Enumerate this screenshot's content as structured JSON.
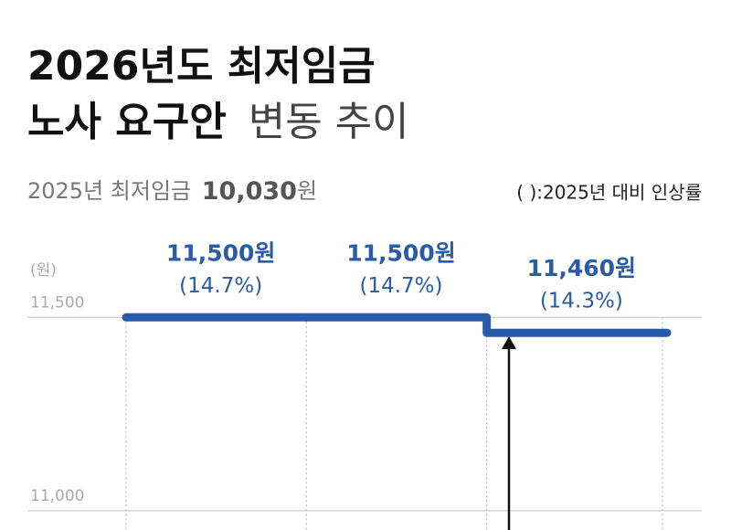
{
  "chart_data": {
    "type": "step",
    "title_bold": "2026년도 최저임금",
    "title_bold_2": "노사 요구안",
    "title_light": "변동 추이",
    "subtitle_prefix": "2025년 최저임금",
    "subtitle_value": "10,030",
    "subtitle_suffix": "원",
    "note": "( ):2025년 대비 인상률",
    "y_unit": "(원)",
    "categories": [
      null,
      null,
      null
    ],
    "series": [
      {
        "name": null,
        "color": "#2a5ba8",
        "values": [
          11500,
          11500,
          11460
        ],
        "value_labels": [
          "11,500원",
          "11,500원",
          "11,460원"
        ],
        "change_labels": [
          "(14.7%)",
          "(14.7%)",
          "(14.3%)"
        ]
      }
    ],
    "ylim": [
      10950,
      11730
    ],
    "yticks": [
      {
        "value": 11500,
        "label": "11,500"
      },
      {
        "value": 11000,
        "label": "11,000"
      }
    ],
    "grid": true
  }
}
